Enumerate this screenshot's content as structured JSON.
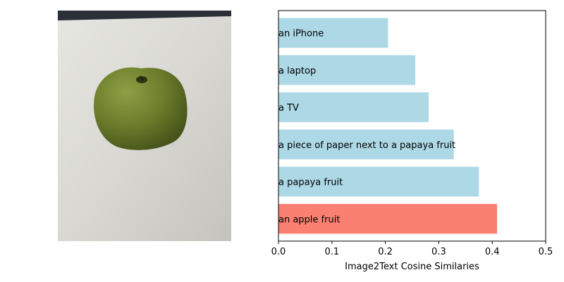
{
  "chart_data": {
    "type": "bar",
    "orientation": "horizontal",
    "categories": [
      "an apple fruit",
      "a papaya fruit",
      "a piece of paper next to a papaya fruit",
      "a TV",
      "a laptop",
      "an iPhone"
    ],
    "values": [
      0.409,
      0.375,
      0.328,
      0.281,
      0.256,
      0.205
    ],
    "bar_colors": [
      "#fa8072",
      "#add8e6",
      "#add8e6",
      "#add8e6",
      "#add8e6",
      "#add8e6"
    ],
    "xlabel": "Image2Text Cosine Similaries",
    "ylabel": "",
    "xlim": [
      0,
      0.5
    ],
    "xticks": [
      "0.0",
      "0.1",
      "0.2",
      "0.3",
      "0.4",
      "0.5"
    ],
    "grid": false,
    "legend": "none"
  },
  "image_panel": {
    "subject": "green apple on a white table",
    "colors": {
      "table": "#d6d5d0",
      "apple": "#6e7f2c",
      "shadow": "#b8b7b1",
      "background_edge": "#2a2f36"
    }
  }
}
